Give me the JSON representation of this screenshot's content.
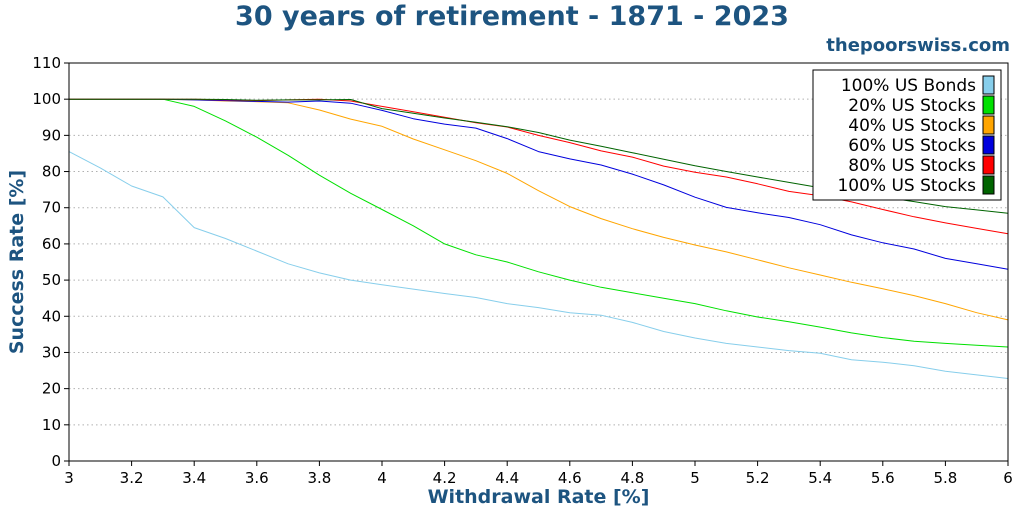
{
  "header": {
    "title": "30 years of retirement - 1871 - 2023",
    "site": "thepoorswiss.com"
  },
  "chart_data": {
    "type": "line",
    "xlabel": "Withdrawal Rate [%]",
    "ylabel": "Success Rate [%]",
    "xlim": [
      3,
      6
    ],
    "ylim": [
      0,
      110
    ],
    "xticks": [
      "3",
      "3.2",
      "3.4",
      "3.6",
      "3.8",
      "4",
      "4.2",
      "4.4",
      "4.6",
      "4.8",
      "5",
      "5.2",
      "5.4",
      "5.6",
      "5.8",
      "6"
    ],
    "yticks": [
      "0",
      "10",
      "20",
      "30",
      "40",
      "50",
      "60",
      "70",
      "80",
      "90",
      "100",
      "110"
    ],
    "grid": "horizontal dotted",
    "legend_position": "top-right",
    "x": [
      3.0,
      3.1,
      3.2,
      3.3,
      3.4,
      3.5,
      3.6,
      3.7,
      3.8,
      3.9,
      4.0,
      4.1,
      4.2,
      4.3,
      4.4,
      4.5,
      4.6,
      4.7,
      4.8,
      4.9,
      5.0,
      5.1,
      5.2,
      5.3,
      5.4,
      5.5,
      5.6,
      5.7,
      5.8,
      5.9,
      6.0
    ],
    "series": [
      {
        "name": "100% US Bonds",
        "color": "#87ceeb",
        "values": [
          85.5,
          81,
          76,
          73,
          64.5,
          61.5,
          58,
          54.5,
          52,
          50,
          48.7,
          47.5,
          46.3,
          45.2,
          43.5,
          42.4,
          41,
          40.3,
          38.3,
          35.8,
          34,
          32.5,
          31.5,
          30.5,
          29.8,
          28,
          27.3,
          26.3,
          24.8,
          23.8,
          22.8
        ]
      },
      {
        "name": "20% US Stocks",
        "color": "#00e000",
        "values": [
          100,
          100,
          100,
          100,
          98,
          94,
          89.5,
          84.5,
          79,
          74,
          69.5,
          65,
          60,
          57,
          55,
          52.3,
          50,
          48,
          46.5,
          45,
          43.5,
          41.5,
          39.8,
          38.5,
          37,
          35.4,
          34.1,
          33.1,
          32.5,
          32,
          31.5
        ]
      },
      {
        "name": "40% US Stocks",
        "color": "#ffa500",
        "values": [
          100,
          100,
          100,
          100,
          99.8,
          99.5,
          99.3,
          99,
          97,
          94.5,
          92.5,
          89,
          86,
          83,
          79.5,
          74.7,
          70.3,
          67,
          64.2,
          61.8,
          59.7,
          57.8,
          55.6,
          53.4,
          51.4,
          49.4,
          47.6,
          45.7,
          43.5,
          41,
          39
        ]
      },
      {
        "name": "60% US Stocks",
        "color": "#0000dd",
        "values": [
          100,
          100,
          100,
          100,
          99.8,
          99.6,
          99.4,
          99.2,
          99.5,
          98.9,
          96.9,
          94.6,
          93.1,
          92,
          89.1,
          85.5,
          83.5,
          81.8,
          79.3,
          76.3,
          72.9,
          70.1,
          68.6,
          67.3,
          65.3,
          62.5,
          60.3,
          58.6,
          56,
          54.5,
          53
        ]
      },
      {
        "name": "80% US Stocks",
        "color": "#ff0000",
        "values": [
          100,
          100,
          100,
          100,
          100,
          99.8,
          99.6,
          99.8,
          100,
          99.5,
          98,
          96.5,
          95,
          93.5,
          92.3,
          90,
          88,
          85.7,
          84,
          81.5,
          79.8,
          78.5,
          76.6,
          74.5,
          73.3,
          71.6,
          69.5,
          67.5,
          65.8,
          64.3,
          62.8
        ]
      },
      {
        "name": "100% US Stocks",
        "color": "#006400",
        "values": [
          100,
          100,
          100,
          100,
          100,
          99.9,
          99.7,
          99.8,
          99.8,
          99.9,
          97.4,
          96.1,
          94.8,
          93.6,
          92.4,
          90.8,
          88.7,
          87,
          85.2,
          83.4,
          81.6,
          80,
          78.5,
          77,
          75.5,
          74.3,
          73,
          71.7,
          70.3,
          69.4,
          68.5
        ]
      }
    ]
  }
}
